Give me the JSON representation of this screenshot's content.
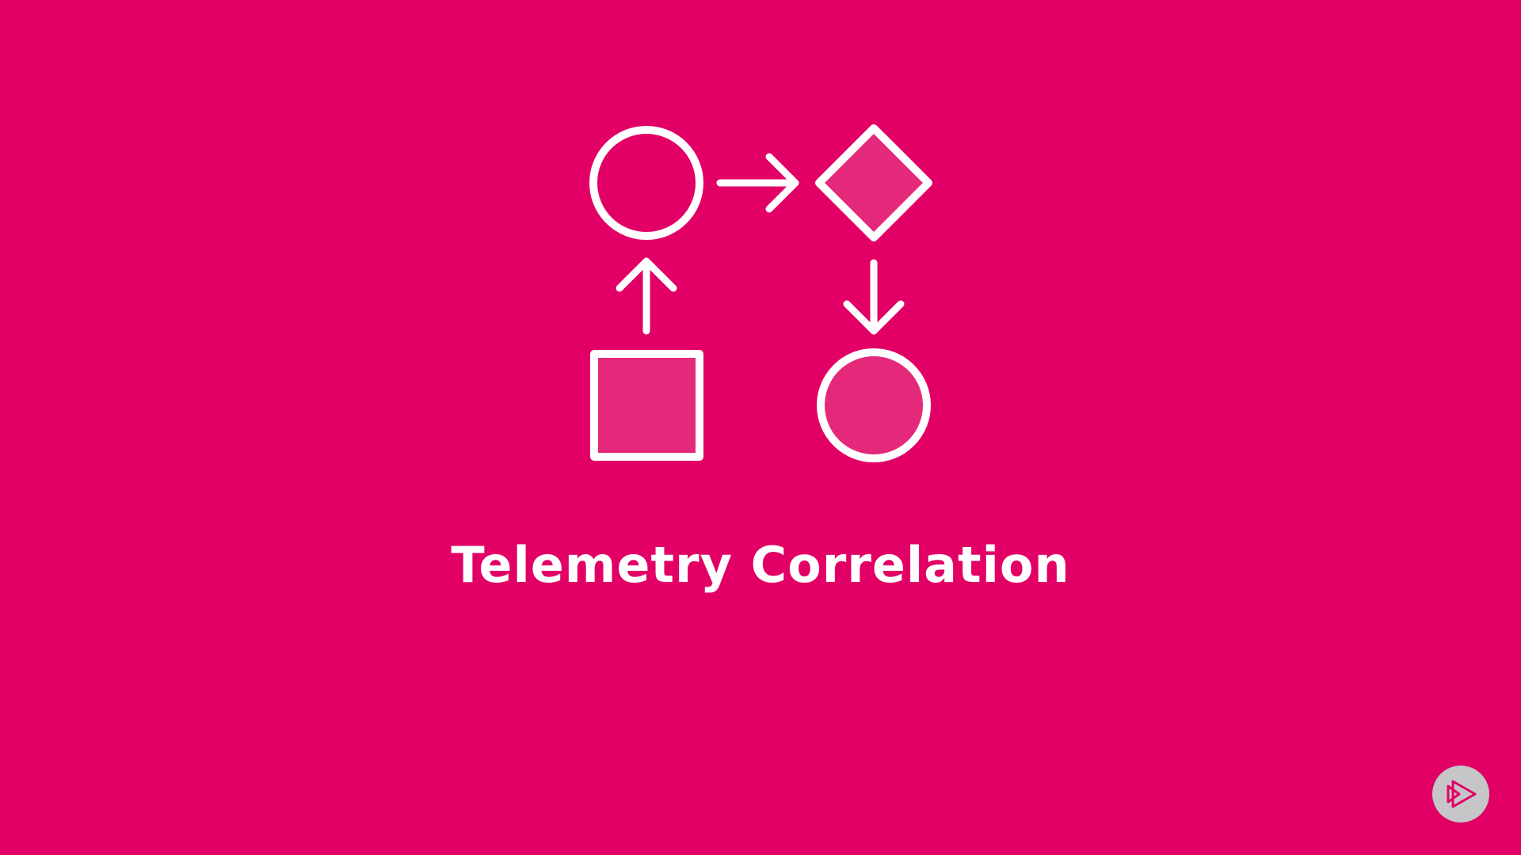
{
  "slide": {
    "title": "Telemetry Correlation"
  },
  "colors": {
    "background": "#E20066",
    "stroke": "#FFFFFF",
    "shape_fill": "#E5297A",
    "badge_fill": "#C6C6C8",
    "badge_icon": "#E20066"
  },
  "diagram": {
    "shapes": [
      {
        "name": "top-left-circle",
        "shape": "circle",
        "filled": false
      },
      {
        "name": "top-right-diamond",
        "shape": "diamond",
        "filled": true
      },
      {
        "name": "bottom-left-square",
        "shape": "square",
        "filled": true
      },
      {
        "name": "bottom-right-circle",
        "shape": "circle",
        "filled": true
      }
    ],
    "arrows": [
      {
        "name": "arrow-circle-to-diamond",
        "from": "top-left-circle",
        "to": "top-right-diamond",
        "direction": "right"
      },
      {
        "name": "arrow-diamond-to-circle",
        "from": "top-right-diamond",
        "to": "bottom-right-circle",
        "direction": "down"
      },
      {
        "name": "arrow-square-to-circle",
        "from": "bottom-left-square",
        "to": "top-left-circle",
        "direction": "up"
      }
    ]
  },
  "badge": {
    "icon": "pluralsight-play-icon"
  }
}
